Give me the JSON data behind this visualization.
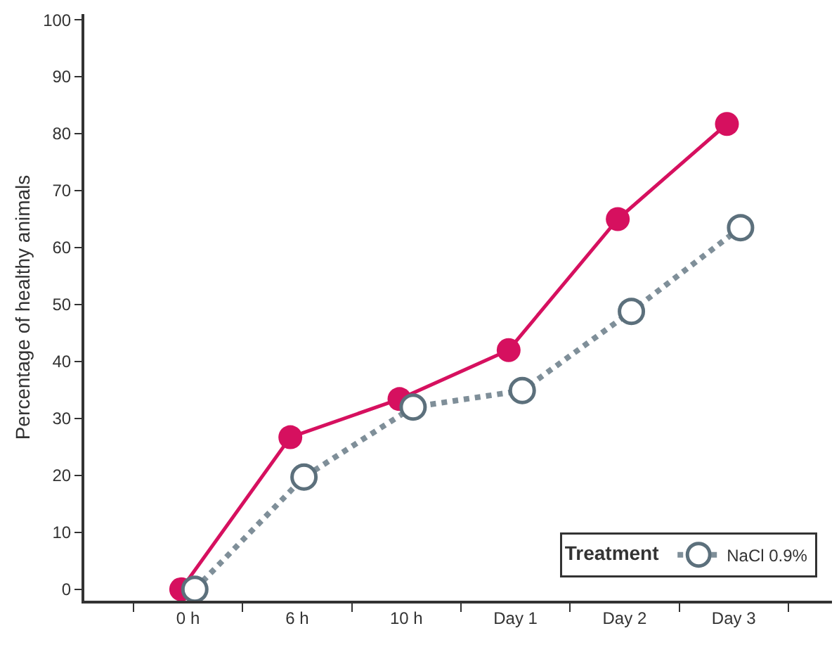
{
  "chart_data": {
    "type": "line",
    "ylabel": "Percentage of healthy animals",
    "legend_title": "Treatment",
    "categories": [
      "0 h",
      "6 h",
      "10 h",
      "Day 1",
      "Day 2",
      "Day 3"
    ],
    "series": [
      {
        "color": "#d6105f",
        "line_style": "solid",
        "values": [
          0,
          26.7,
          33.4,
          42,
          65,
          81.7
        ]
      },
      {
        "name": "NaCl 0.9%",
        "color": "#7f8f99",
        "line_style": "dotted",
        "values": [
          0,
          19.7,
          32,
          34.9,
          48.8,
          63.5
        ]
      }
    ],
    "ylim": [
      -2,
      101
    ],
    "yticks": [
      0,
      10,
      20,
      30,
      40,
      50,
      60,
      70,
      80,
      90,
      100
    ],
    "grid": false,
    "legend": "bottom right",
    "marker": "circle"
  }
}
